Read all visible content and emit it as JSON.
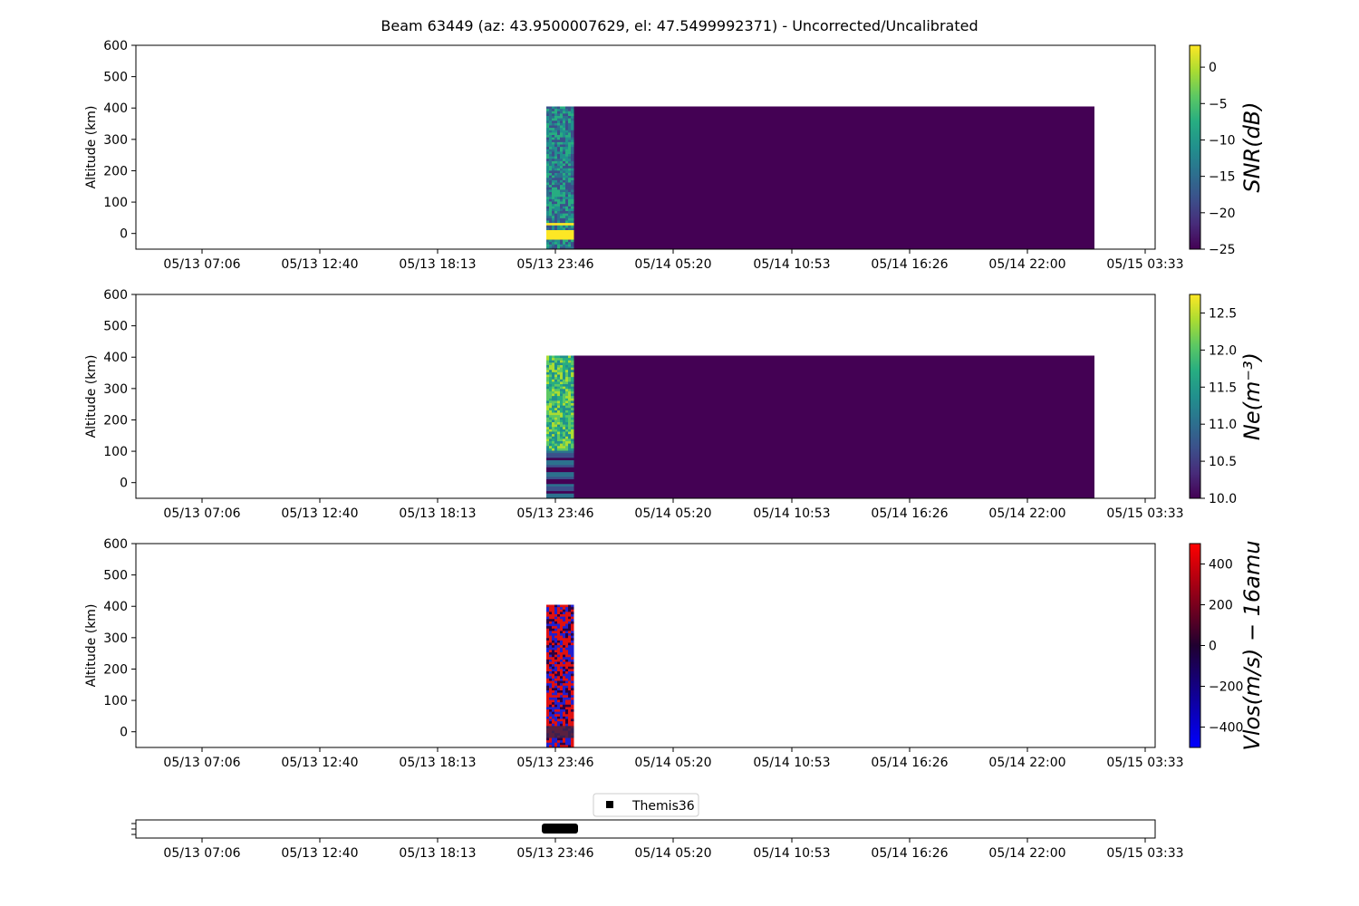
{
  "title": "Beam 63449 (az: 43.9500007629, el: 47.5499992371) - Uncorrected/Uncalibrated",
  "chart_data": [
    {
      "type": "heatmap",
      "ylabel": "Altitude (km)",
      "ylim": [
        -50,
        600
      ],
      "yticks": [
        "600",
        "500",
        "400",
        "300",
        "200",
        "100",
        "0"
      ],
      "xticks": [
        "05/13 07:06",
        "05/13 12:40",
        "05/13 18:13",
        "05/13 23:46",
        "05/14 05:20",
        "05/14 10:53",
        "05/14 16:26",
        "05/14 22:00",
        "05/15 03:33"
      ],
      "colorbar": {
        "label": "SNR(dB)",
        "colormap": "viridis",
        "range": [
          -25,
          3
        ],
        "ticks": [
          "0",
          "−5",
          "−10",
          "−15",
          "−20",
          "−25"
        ]
      },
      "data_extent": {
        "time_start": "05/13 23:16",
        "time_end": "05/15 00:22",
        "altitude_range_km": [
          -50,
          405
        ]
      },
      "features": [
        {
          "desc": "noisy mid values",
          "time": "05/13 23:16–05/14 00:30",
          "altitude_km": [
            -50,
            405
          ]
        },
        {
          "desc": "saturated bright band",
          "time": "05/13 23:16–05/14 00:30",
          "altitude_km": [
            -20,
            35
          ],
          "value": 3
        }
      ],
      "background_value": -25
    },
    {
      "type": "heatmap",
      "ylabel": "Altitude (km)",
      "ylim": [
        -50,
        600
      ],
      "yticks": [
        "600",
        "500",
        "400",
        "300",
        "200",
        "100",
        "0"
      ],
      "xticks": [
        "05/13 07:06",
        "05/13 12:40",
        "05/13 18:13",
        "05/13 23:46",
        "05/14 05:20",
        "05/14 10:53",
        "05/14 16:26",
        "05/14 22:00",
        "05/15 03:33"
      ],
      "colorbar": {
        "label": "Ne(m⁻³)",
        "colormap": "viridis",
        "range": [
          10.0,
          12.75
        ],
        "ticks": [
          "12.5",
          "12.0",
          "11.5",
          "11.0",
          "10.5",
          "10.0"
        ]
      },
      "data_extent": {
        "time_start": "05/13 23:16",
        "time_end": "05/15 00:22",
        "altitude_range_km": [
          -50,
          405
        ]
      },
      "features": [
        {
          "desc": "noisy values ~11.5",
          "time": "05/13 23:16–05/14 00:30",
          "altitude_km": [
            100,
            405
          ]
        },
        {
          "desc": "horizontal banding ~10.8",
          "time": "05/13 23:16–05/14 00:30",
          "altitude_km": [
            -30,
            40
          ]
        }
      ],
      "background_value": 10.0
    },
    {
      "type": "heatmap",
      "ylabel": "Altitude (km)",
      "ylim": [
        -50,
        600
      ],
      "yticks": [
        "600",
        "500",
        "400",
        "300",
        "200",
        "100",
        "0"
      ],
      "xticks": [
        "05/13 07:06",
        "05/13 12:40",
        "05/13 18:13",
        "05/13 23:46",
        "05/14 05:20",
        "05/14 10:53",
        "05/14 16:26",
        "05/14 22:00",
        "05/15 03:33"
      ],
      "colorbar": {
        "label": "Vlos(m/s) − 16amu",
        "colormap": "blue-black-red",
        "range": [
          -500,
          500
        ],
        "ticks": [
          "400",
          "200",
          "0",
          "−200",
          "−400"
        ]
      },
      "data_extent": {
        "time_start": "05/13 23:16",
        "time_end": "05/14 00:30",
        "altitude_range_km": [
          -50,
          405
        ]
      },
      "features": [
        {
          "desc": "alternating red/blue noise",
          "time": "05/13 23:16–05/14 00:30",
          "altitude_km": [
            -50,
            405
          ]
        }
      ]
    },
    {
      "type": "scatter",
      "legend": [
        "Themis36"
      ],
      "legend_placement": "top-center",
      "xticks": [
        "05/13 07:06",
        "05/13 12:40",
        "05/13 18:13",
        "05/13 23:46",
        "05/14 05:20",
        "05/14 10:53",
        "05/14 16:26",
        "05/14 22:00",
        "05/15 03:33"
      ],
      "series": [
        {
          "name": "Themis36",
          "marker": "square",
          "color": "#000000",
          "x_range": [
            "05/13 23:16",
            "05/14 00:30"
          ]
        }
      ]
    }
  ]
}
